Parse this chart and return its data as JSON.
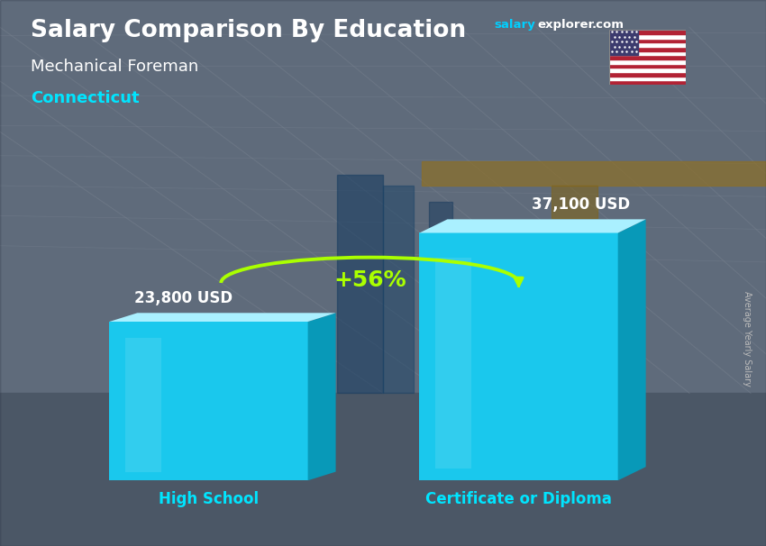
{
  "title_main": "Salary Comparison By Education",
  "subtitle1": "Mechanical Foreman",
  "subtitle2": "Connecticut",
  "categories": [
    "High School",
    "Certificate or Diploma"
  ],
  "values": [
    23800,
    37100
  ],
  "labels": [
    "23,800 USD",
    "37,100 USD"
  ],
  "pct_change": "+56%",
  "bar_color_face": "#1ac8ed",
  "bar_color_light": "#8ae8f8",
  "bar_color_top": "#aaf0ff",
  "bar_color_side": "#0899b8",
  "ylabel": "Average Yearly Salary",
  "text_color_white": "#ffffff",
  "text_color_cyan": "#00e5ff",
  "text_color_green": "#aaff00",
  "salary_color": "#00cfff",
  "ylim_max": 45000,
  "bar_width": 0.32,
  "bg_top": "#7a8a9a",
  "bg_bottom": "#5a6070"
}
